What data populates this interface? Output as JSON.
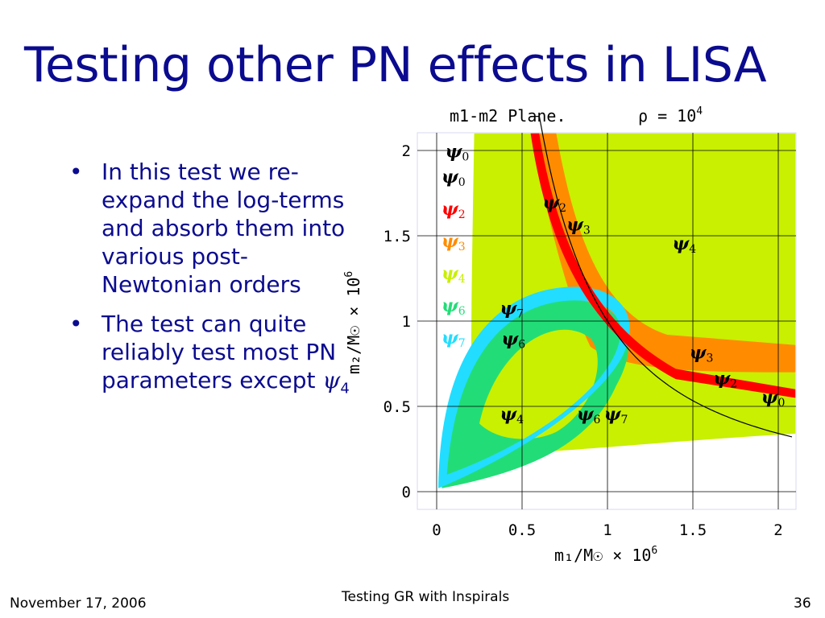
{
  "slide": {
    "title": "Testing other PN effects in LISA",
    "bullets": [
      "In this test we re-expand the log-terms and absorb them into various post-Newtonian orders",
      "The test can quite reliably test most PN parameters except"
    ],
    "bullet_symbol": "ψ",
    "bullet_symbol_sub": "4"
  },
  "footer": {
    "date": "November 17, 2006",
    "center": "Testing GR with Inspirals",
    "page": "36"
  },
  "chart_data": {
    "type": "contour",
    "title": "m1-m2 Plane.",
    "title_rho": "ρ = 10",
    "title_rho_exp": "4",
    "xlabel": "m₁/M☉ × 10",
    "xlabel_exp": "6",
    "ylabel": "m₂/M☉ × 10",
    "ylabel_exp": "6",
    "x_ticks": [
      "0",
      "0.5",
      "1",
      "1.5",
      "2"
    ],
    "y_ticks": [
      "0",
      "0.5",
      "1",
      "1.5",
      "2"
    ],
    "xlim": [
      0,
      2
    ],
    "ylim": [
      0,
      2
    ],
    "true_point": [
      1.0,
      1.0
    ],
    "legend": [
      {
        "symbol": "ψ",
        "sub": "0",
        "color": "#000000"
      },
      {
        "symbol": "ψ",
        "sub": "2",
        "color": "#ff0000"
      },
      {
        "symbol": "ψ",
        "sub": "3",
        "color": "#ff8c00"
      },
      {
        "symbol": "ψ",
        "sub": "4",
        "color": "#c8f000"
      },
      {
        "symbol": "ψ",
        "sub": "6",
        "color": "#22dd77"
      },
      {
        "symbol": "ψ",
        "sub": "7",
        "color": "#22ddff"
      }
    ],
    "band_labels": [
      {
        "symbol": "ψ",
        "sub": "0",
        "x": 0.05,
        "y": 1.96
      },
      {
        "symbol": "ψ",
        "sub": "2",
        "x": 0.62,
        "y": 1.66
      },
      {
        "symbol": "ψ",
        "sub": "3",
        "x": 0.76,
        "y": 1.53
      },
      {
        "symbol": "ψ",
        "sub": "4",
        "x": 1.38,
        "y": 1.42
      },
      {
        "symbol": "ψ",
        "sub": "7",
        "x": 0.37,
        "y": 1.04
      },
      {
        "symbol": "ψ",
        "sub": "6",
        "x": 0.38,
        "y": 0.86
      },
      {
        "symbol": "ψ",
        "sub": "3",
        "x": 1.48,
        "y": 0.78
      },
      {
        "symbol": "ψ",
        "sub": "2",
        "x": 1.62,
        "y": 0.63
      },
      {
        "symbol": "ψ",
        "sub": "0",
        "x": 1.9,
        "y": 0.52
      },
      {
        "symbol": "ψ",
        "sub": "4",
        "x": 0.37,
        "y": 0.42
      },
      {
        "symbol": "ψ",
        "sub": "6",
        "x": 0.82,
        "y": 0.42
      },
      {
        "symbol": "ψ",
        "sub": "7",
        "x": 0.98,
        "y": 0.42
      }
    ],
    "colors": {
      "psi4_region": "#c8f000",
      "psi3_band": "#ff8c00",
      "psi2_band": "#ff0000",
      "psi6_region": "#22dd77",
      "psi7_region": "#22ddff",
      "psi0_curve": "#000000",
      "grid": "#000000"
    }
  }
}
